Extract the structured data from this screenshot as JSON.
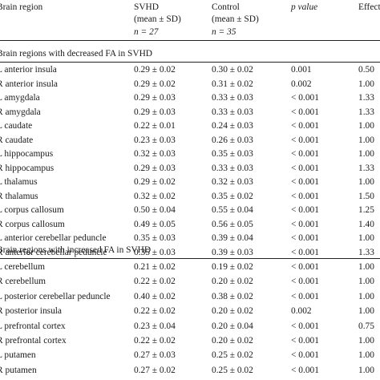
{
  "header": {
    "col_region": "Brain region",
    "col_svhd": [
      "SVHD",
      "(mean ± SD)",
      "n = 27"
    ],
    "col_control": [
      "Control",
      "(mean ± SD)",
      "n = 35"
    ],
    "col_p": "p value",
    "col_effect": "Effect size"
  },
  "section_decreased": "Brain regions with decreased FA in SVHD",
  "section_increased": "Brain regions with increased FA in SVHD",
  "rows_decreased": [
    [
      "L anterior insula",
      "0.29 ± 0.02",
      "0.30 ± 0.02",
      "0.001",
      "0.50"
    ],
    [
      "R anterior insula",
      "0.29 ± 0.02",
      "0.31 ± 0.02",
      "0.002",
      "1.00"
    ],
    [
      "L amygdala",
      "0.29 ± 0.03",
      "0.33 ± 0.03",
      "< 0.001",
      "1.33"
    ],
    [
      "R amygdala",
      "0.29 ± 0.03",
      "0.33 ± 0.03",
      "< 0.001",
      "1.33"
    ],
    [
      "L caudate",
      "0.22 ± 0.01",
      "0.24 ± 0.03",
      "< 0.001",
      "1.00"
    ],
    [
      "R caudate",
      "0.23 ± 0.03",
      "0.26 ± 0.03",
      "< 0.001",
      "1.00"
    ],
    [
      "L hippocampus",
      "0.32 ± 0.03",
      "0.35 ± 0.03",
      "< 0.001",
      "1.00"
    ],
    [
      "R hippocampus",
      "0.29 ± 0.03",
      "0.33 ± 0.03",
      "< 0.001",
      "1.33"
    ],
    [
      "L thalamus",
      "0.29 ± 0.02",
      "0.32 ± 0.03",
      "< 0.001",
      "1.00"
    ],
    [
      "R thalamus",
      "0.32 ± 0.02",
      "0.35 ± 0.02",
      "< 0.001",
      "1.50"
    ],
    [
      "L corpus callosum",
      "0.50 ± 0.04",
      "0.55 ± 0.04",
      "< 0.001",
      "1.25"
    ],
    [
      "R corpus callosum",
      "0.49 ± 0.05",
      "0.56 ± 0.05",
      "< 0.001",
      "1.40"
    ],
    [
      "L anterior cerebellar peduncle",
      "0.35 ± 0.03",
      "0.39 ± 0.04",
      "< 0.001",
      "1.00"
    ],
    [
      "R anterior cerebellar peduncle",
      "0.35 ± 0.03",
      "0.39 ± 0.03",
      "< 0.001",
      "1.33"
    ]
  ],
  "rows_increased": [
    [
      "L cerebellum",
      "0.21 ± 0.02",
      "0.19 ± 0.02",
      "< 0.001",
      "1.00"
    ],
    [
      "R cerebellum",
      "0.22 ± 0.02",
      "0.20 ± 0.02",
      "< 0.001",
      "1.00"
    ],
    [
      "L posterior cerebellar peduncle",
      "0.40 ± 0.02",
      "0.38 ± 0.02",
      "< 0.001",
      "1.00"
    ],
    [
      "R posterior insula",
      "0.22 ± 0.02",
      "0.20 ± 0.02",
      "0.002",
      "1.00"
    ],
    [
      "L prefrontal cortex",
      "0.23 ± 0.04",
      "0.20 ± 0.04",
      "< 0.001",
      "0.75"
    ],
    [
      "R prefrontal cortex",
      "0.22 ± 0.02",
      "0.20 ± 0.02",
      "< 0.001",
      "1.00"
    ],
    [
      "L putamen",
      "0.27 ± 0.03",
      "0.25 ± 0.02",
      "< 0.001",
      "1.00"
    ],
    [
      "R putamen",
      "0.27 ± 0.02",
      "0.25 ± 0.02",
      "< 0.001",
      "1.00"
    ]
  ]
}
